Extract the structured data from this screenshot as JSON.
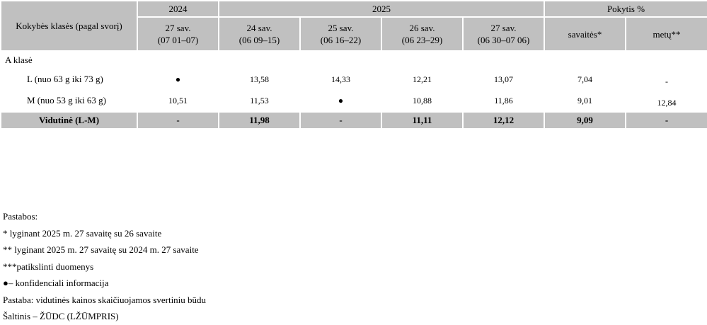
{
  "table": {
    "header": {
      "row_label": "Kokybės klasės (pagal svorį)",
      "year2024": "2024",
      "year2025": "2025",
      "change": "Pokytis %",
      "weeks": [
        {
          "week": "27 sav.",
          "dates": "(07 01–07)"
        },
        {
          "week": "24 sav.",
          "dates": "(06 09–15)"
        },
        {
          "week": "25 sav.",
          "dates": "(06 16–22)"
        },
        {
          "week": "26 sav.",
          "dates": "(06 23–29)"
        },
        {
          "week": "27 sav.",
          "dates": "(06 30–07 06)"
        }
      ],
      "change_week": "savaitės*",
      "change_year": "metų**"
    },
    "group": "A klasė",
    "rows": [
      {
        "label": "L (nuo 63 g iki 73 g)",
        "values": [
          "●",
          "13,58",
          "14,33",
          "12,21",
          "13,07",
          "7,04",
          "-"
        ]
      },
      {
        "label": "M (nuo 53 g iki 63 g)",
        "values": [
          "10,51",
          "11,53",
          "●",
          "10,88",
          "11,86",
          "9,01",
          "12,84"
        ]
      }
    ],
    "total": {
      "label": "Vidutinė (L-M)",
      "values": [
        "-",
        "11,98",
        "-",
        "11,11",
        "12,12",
        "9,09",
        "-"
      ]
    }
  },
  "notes": [
    "Pastabos:",
    "* lyginant 2025 m. 27 savaitę su 26 savaite",
    "** lyginant 2025 m. 27 savaitę su 2024 m. 27 savaite",
    "***patikslinti duomenys",
    "●– konfidenciali informacija",
    "Pastaba: vidutinės kainos skaičiuojamos svertiniu būdu",
    "Šaltinis – ŽŪDC (LŽŪMPRIS)"
  ]
}
